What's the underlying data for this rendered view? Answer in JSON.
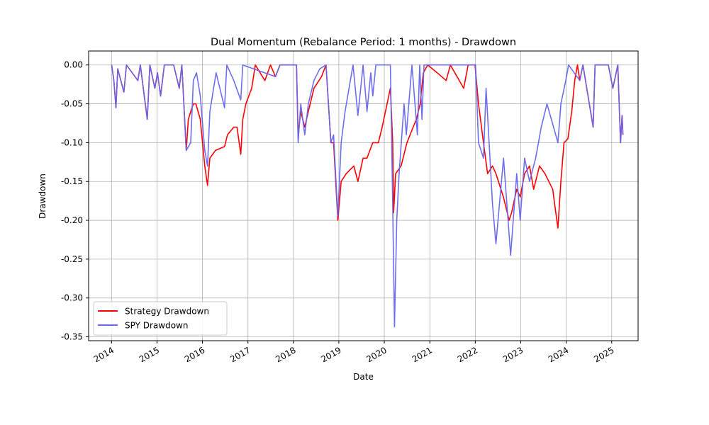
{
  "chart_data": {
    "type": "line",
    "title": "Dual Momentum (Rebalance Period: 1 months) - Drawdown",
    "xlabel": "Date",
    "ylabel": "Drawdown",
    "xlim": [
      "2013-07-01",
      "2025-08-01"
    ],
    "ylim": [
      -0.355,
      0.018
    ],
    "x_ticks": [
      "2014",
      "2015",
      "2016",
      "2017",
      "2018",
      "2019",
      "2020",
      "2021",
      "2022",
      "2023",
      "2024",
      "2025"
    ],
    "y_ticks": [
      "0.00",
      "-0.05",
      "-0.10",
      "-0.15",
      "-0.20",
      "-0.25",
      "-0.30",
      "-0.35"
    ],
    "y_tick_values": [
      0.0,
      -0.05,
      -0.1,
      -0.15,
      -0.2,
      -0.25,
      -0.3,
      -0.35
    ],
    "grid": true,
    "legend_position": "lower-left",
    "series": [
      {
        "name": "Strategy Drawdown",
        "color": "#ff0000",
        "points": [
          [
            "2014-01-02",
            0.0
          ],
          [
            "2014-01-20",
            -0.02
          ],
          [
            "2014-02-05",
            -0.055
          ],
          [
            "2014-02-20",
            -0.005
          ],
          [
            "2014-04-10",
            -0.035
          ],
          [
            "2014-05-01",
            0.0
          ],
          [
            "2014-07-31",
            -0.02
          ],
          [
            "2014-08-20",
            0.0
          ],
          [
            "2014-10-15",
            -0.07
          ],
          [
            "2014-11-05",
            0.0
          ],
          [
            "2014-12-15",
            -0.03
          ],
          [
            "2015-01-05",
            -0.01
          ],
          [
            "2015-01-30",
            -0.04
          ],
          [
            "2015-03-01",
            0.0
          ],
          [
            "2015-05-15",
            0.0
          ],
          [
            "2015-06-29",
            -0.03
          ],
          [
            "2015-07-20",
            0.0
          ],
          [
            "2015-08-24",
            -0.11
          ],
          [
            "2015-09-10",
            -0.07
          ],
          [
            "2015-09-29",
            -0.06
          ],
          [
            "2015-10-20",
            -0.05
          ],
          [
            "2015-11-10",
            -0.05
          ],
          [
            "2015-12-15",
            -0.07
          ],
          [
            "2016-01-20",
            -0.13
          ],
          [
            "2016-02-11",
            -0.155
          ],
          [
            "2016-03-01",
            -0.12
          ],
          [
            "2016-04-15",
            -0.11
          ],
          [
            "2016-06-27",
            -0.105
          ],
          [
            "2016-07-20",
            -0.09
          ],
          [
            "2016-09-09",
            -0.08
          ],
          [
            "2016-10-05",
            -0.08
          ],
          [
            "2016-11-04",
            -0.115
          ],
          [
            "2016-11-20",
            -0.07
          ],
          [
            "2016-12-15",
            -0.05
          ],
          [
            "2017-01-31",
            -0.03
          ],
          [
            "2017-03-01",
            0.0
          ],
          [
            "2017-05-17",
            -0.02
          ],
          [
            "2017-07-01",
            0.0
          ],
          [
            "2017-08-10",
            -0.015
          ],
          [
            "2017-09-15",
            0.0
          ],
          [
            "2018-01-26",
            0.0
          ],
          [
            "2018-02-08",
            -0.09
          ],
          [
            "2018-03-01",
            -0.06
          ],
          [
            "2018-04-02",
            -0.08
          ],
          [
            "2018-05-01",
            -0.06
          ],
          [
            "2018-06-15",
            -0.03
          ],
          [
            "2018-08-15",
            -0.015
          ],
          [
            "2018-09-20",
            0.0
          ],
          [
            "2018-10-29",
            -0.1
          ],
          [
            "2018-11-20",
            -0.1
          ],
          [
            "2018-12-24",
            -0.2
          ],
          [
            "2019-01-20",
            -0.15
          ],
          [
            "2019-03-01",
            -0.14
          ],
          [
            "2019-05-01",
            -0.13
          ],
          [
            "2019-06-03",
            -0.15
          ],
          [
            "2019-07-15",
            -0.12
          ],
          [
            "2019-08-15",
            -0.12
          ],
          [
            "2019-10-01",
            -0.1
          ],
          [
            "2019-11-15",
            -0.1
          ],
          [
            "2019-12-15",
            -0.08
          ],
          [
            "2020-02-19",
            -0.03
          ],
          [
            "2020-03-09",
            -0.1
          ],
          [
            "2020-03-16",
            -0.19
          ],
          [
            "2020-04-01",
            -0.14
          ],
          [
            "2020-05-15",
            -0.13
          ],
          [
            "2020-07-01",
            -0.1
          ],
          [
            "2020-08-20",
            -0.08
          ],
          [
            "2020-09-15",
            -0.07
          ],
          [
            "2020-10-15",
            -0.05
          ],
          [
            "2020-11-10",
            -0.01
          ],
          [
            "2020-12-15",
            0.0
          ],
          [
            "2021-03-01",
            -0.01
          ],
          [
            "2021-05-12",
            -0.02
          ],
          [
            "2021-06-15",
            0.0
          ],
          [
            "2021-09-30",
            -0.03
          ],
          [
            "2021-11-05",
            0.0
          ],
          [
            "2021-12-30",
            0.0
          ],
          [
            "2022-01-27",
            -0.05
          ],
          [
            "2022-03-08",
            -0.1
          ],
          [
            "2022-04-10",
            -0.14
          ],
          [
            "2022-05-20",
            -0.13
          ],
          [
            "2022-06-16",
            -0.14
          ],
          [
            "2022-08-15",
            -0.17
          ],
          [
            "2022-09-30",
            -0.2
          ],
          [
            "2022-10-20",
            -0.19
          ],
          [
            "2022-11-30",
            -0.16
          ],
          [
            "2022-12-28",
            -0.17
          ],
          [
            "2023-02-01",
            -0.14
          ],
          [
            "2023-03-13",
            -0.13
          ],
          [
            "2023-04-15",
            -0.16
          ],
          [
            "2023-06-01",
            -0.13
          ],
          [
            "2023-07-15",
            -0.14
          ],
          [
            "2023-08-15",
            -0.15
          ],
          [
            "2023-09-15",
            -0.16
          ],
          [
            "2023-10-01",
            -0.18
          ],
          [
            "2023-10-27",
            -0.21
          ],
          [
            "2023-11-20",
            -0.15
          ],
          [
            "2023-12-15",
            -0.1
          ],
          [
            "2024-01-15",
            -0.095
          ],
          [
            "2024-02-15",
            -0.06
          ],
          [
            "2024-03-10",
            -0.02
          ],
          [
            "2024-04-01",
            0.0
          ],
          [
            "2024-04-19",
            -0.02
          ],
          [
            "2024-05-15",
            0.0
          ],
          [
            "2024-08-05",
            -0.08
          ],
          [
            "2024-08-20",
            0.0
          ],
          [
            "2024-12-05",
            0.0
          ],
          [
            "2025-01-10",
            -0.03
          ],
          [
            "2025-02-19",
            0.0
          ],
          [
            "2025-03-13",
            -0.1
          ],
          [
            "2025-03-25",
            -0.065
          ],
          [
            "2025-04-01",
            -0.09
          ]
        ]
      },
      {
        "name": "SPY Drawdown",
        "color": "#6666ee",
        "points": [
          [
            "2014-01-02",
            0.0
          ],
          [
            "2014-01-20",
            -0.02
          ],
          [
            "2014-02-05",
            -0.055
          ],
          [
            "2014-02-20",
            -0.005
          ],
          [
            "2014-04-10",
            -0.035
          ],
          [
            "2014-05-01",
            0.0
          ],
          [
            "2014-07-31",
            -0.02
          ],
          [
            "2014-08-20",
            0.0
          ],
          [
            "2014-10-15",
            -0.07
          ],
          [
            "2014-11-05",
            0.0
          ],
          [
            "2014-12-15",
            -0.03
          ],
          [
            "2015-01-05",
            -0.01
          ],
          [
            "2015-01-30",
            -0.04
          ],
          [
            "2015-03-01",
            0.0
          ],
          [
            "2015-05-15",
            0.0
          ],
          [
            "2015-06-29",
            -0.03
          ],
          [
            "2015-07-20",
            0.0
          ],
          [
            "2015-08-24",
            -0.11
          ],
          [
            "2015-09-29",
            -0.1
          ],
          [
            "2015-10-20",
            -0.02
          ],
          [
            "2015-11-15",
            -0.01
          ],
          [
            "2015-12-15",
            -0.04
          ],
          [
            "2016-01-20",
            -0.11
          ],
          [
            "2016-02-11",
            -0.13
          ],
          [
            "2016-03-01",
            -0.06
          ],
          [
            "2016-04-20",
            -0.01
          ],
          [
            "2016-06-27",
            -0.055
          ],
          [
            "2016-07-15",
            0.0
          ],
          [
            "2016-09-09",
            -0.02
          ],
          [
            "2016-11-04",
            -0.045
          ],
          [
            "2016-11-20",
            0.0
          ],
          [
            "2017-08-10",
            -0.015
          ],
          [
            "2017-09-15",
            0.0
          ],
          [
            "2018-01-26",
            0.0
          ],
          [
            "2018-02-08",
            -0.1
          ],
          [
            "2018-03-01",
            -0.05
          ],
          [
            "2018-04-02",
            -0.09
          ],
          [
            "2018-05-01",
            -0.05
          ],
          [
            "2018-06-15",
            -0.02
          ],
          [
            "2018-08-01",
            -0.005
          ],
          [
            "2018-09-20",
            0.0
          ],
          [
            "2018-10-29",
            -0.1
          ],
          [
            "2018-11-20",
            -0.09
          ],
          [
            "2018-12-24",
            -0.195
          ],
          [
            "2019-01-20",
            -0.1
          ],
          [
            "2019-02-20",
            -0.06
          ],
          [
            "2019-04-25",
            0.0
          ],
          [
            "2019-06-03",
            -0.065
          ],
          [
            "2019-07-15",
            0.0
          ],
          [
            "2019-08-15",
            -0.06
          ],
          [
            "2019-09-15",
            -0.01
          ],
          [
            "2019-10-01",
            -0.04
          ],
          [
            "2019-10-25",
            0.0
          ],
          [
            "2020-02-19",
            0.0
          ],
          [
            "2020-03-09",
            -0.18
          ],
          [
            "2020-03-23",
            -0.337
          ],
          [
            "2020-04-10",
            -0.2
          ],
          [
            "2020-04-29",
            -0.14
          ],
          [
            "2020-06-08",
            -0.05
          ],
          [
            "2020-06-26",
            -0.09
          ],
          [
            "2020-08-10",
            0.0
          ],
          [
            "2020-09-23",
            -0.09
          ],
          [
            "2020-10-12",
            0.0
          ],
          [
            "2020-10-30",
            -0.07
          ],
          [
            "2020-11-15",
            0.0
          ],
          [
            "2022-01-03",
            0.0
          ],
          [
            "2022-01-27",
            -0.1
          ],
          [
            "2022-03-08",
            -0.12
          ],
          [
            "2022-03-29",
            -0.03
          ],
          [
            "2022-05-20",
            -0.18
          ],
          [
            "2022-06-16",
            -0.23
          ],
          [
            "2022-08-16",
            -0.12
          ],
          [
            "2022-10-12",
            -0.245
          ],
          [
            "2022-11-30",
            -0.14
          ],
          [
            "2022-12-28",
            -0.2
          ],
          [
            "2023-02-01",
            -0.12
          ],
          [
            "2023-03-13",
            -0.15
          ],
          [
            "2023-05-01",
            -0.12
          ],
          [
            "2023-06-15",
            -0.08
          ],
          [
            "2023-07-31",
            -0.05
          ],
          [
            "2023-10-27",
            -0.1
          ],
          [
            "2023-11-20",
            -0.05
          ],
          [
            "2023-12-29",
            -0.02
          ],
          [
            "2024-01-20",
            0.0
          ],
          [
            "2024-04-19",
            -0.02
          ],
          [
            "2024-05-15",
            0.0
          ],
          [
            "2024-08-05",
            -0.08
          ],
          [
            "2024-08-20",
            0.0
          ],
          [
            "2024-12-05",
            0.0
          ],
          [
            "2025-01-10",
            -0.03
          ],
          [
            "2025-02-19",
            0.0
          ],
          [
            "2025-03-13",
            -0.1
          ],
          [
            "2025-03-25",
            -0.065
          ],
          [
            "2025-04-01",
            -0.09
          ]
        ]
      }
    ]
  }
}
